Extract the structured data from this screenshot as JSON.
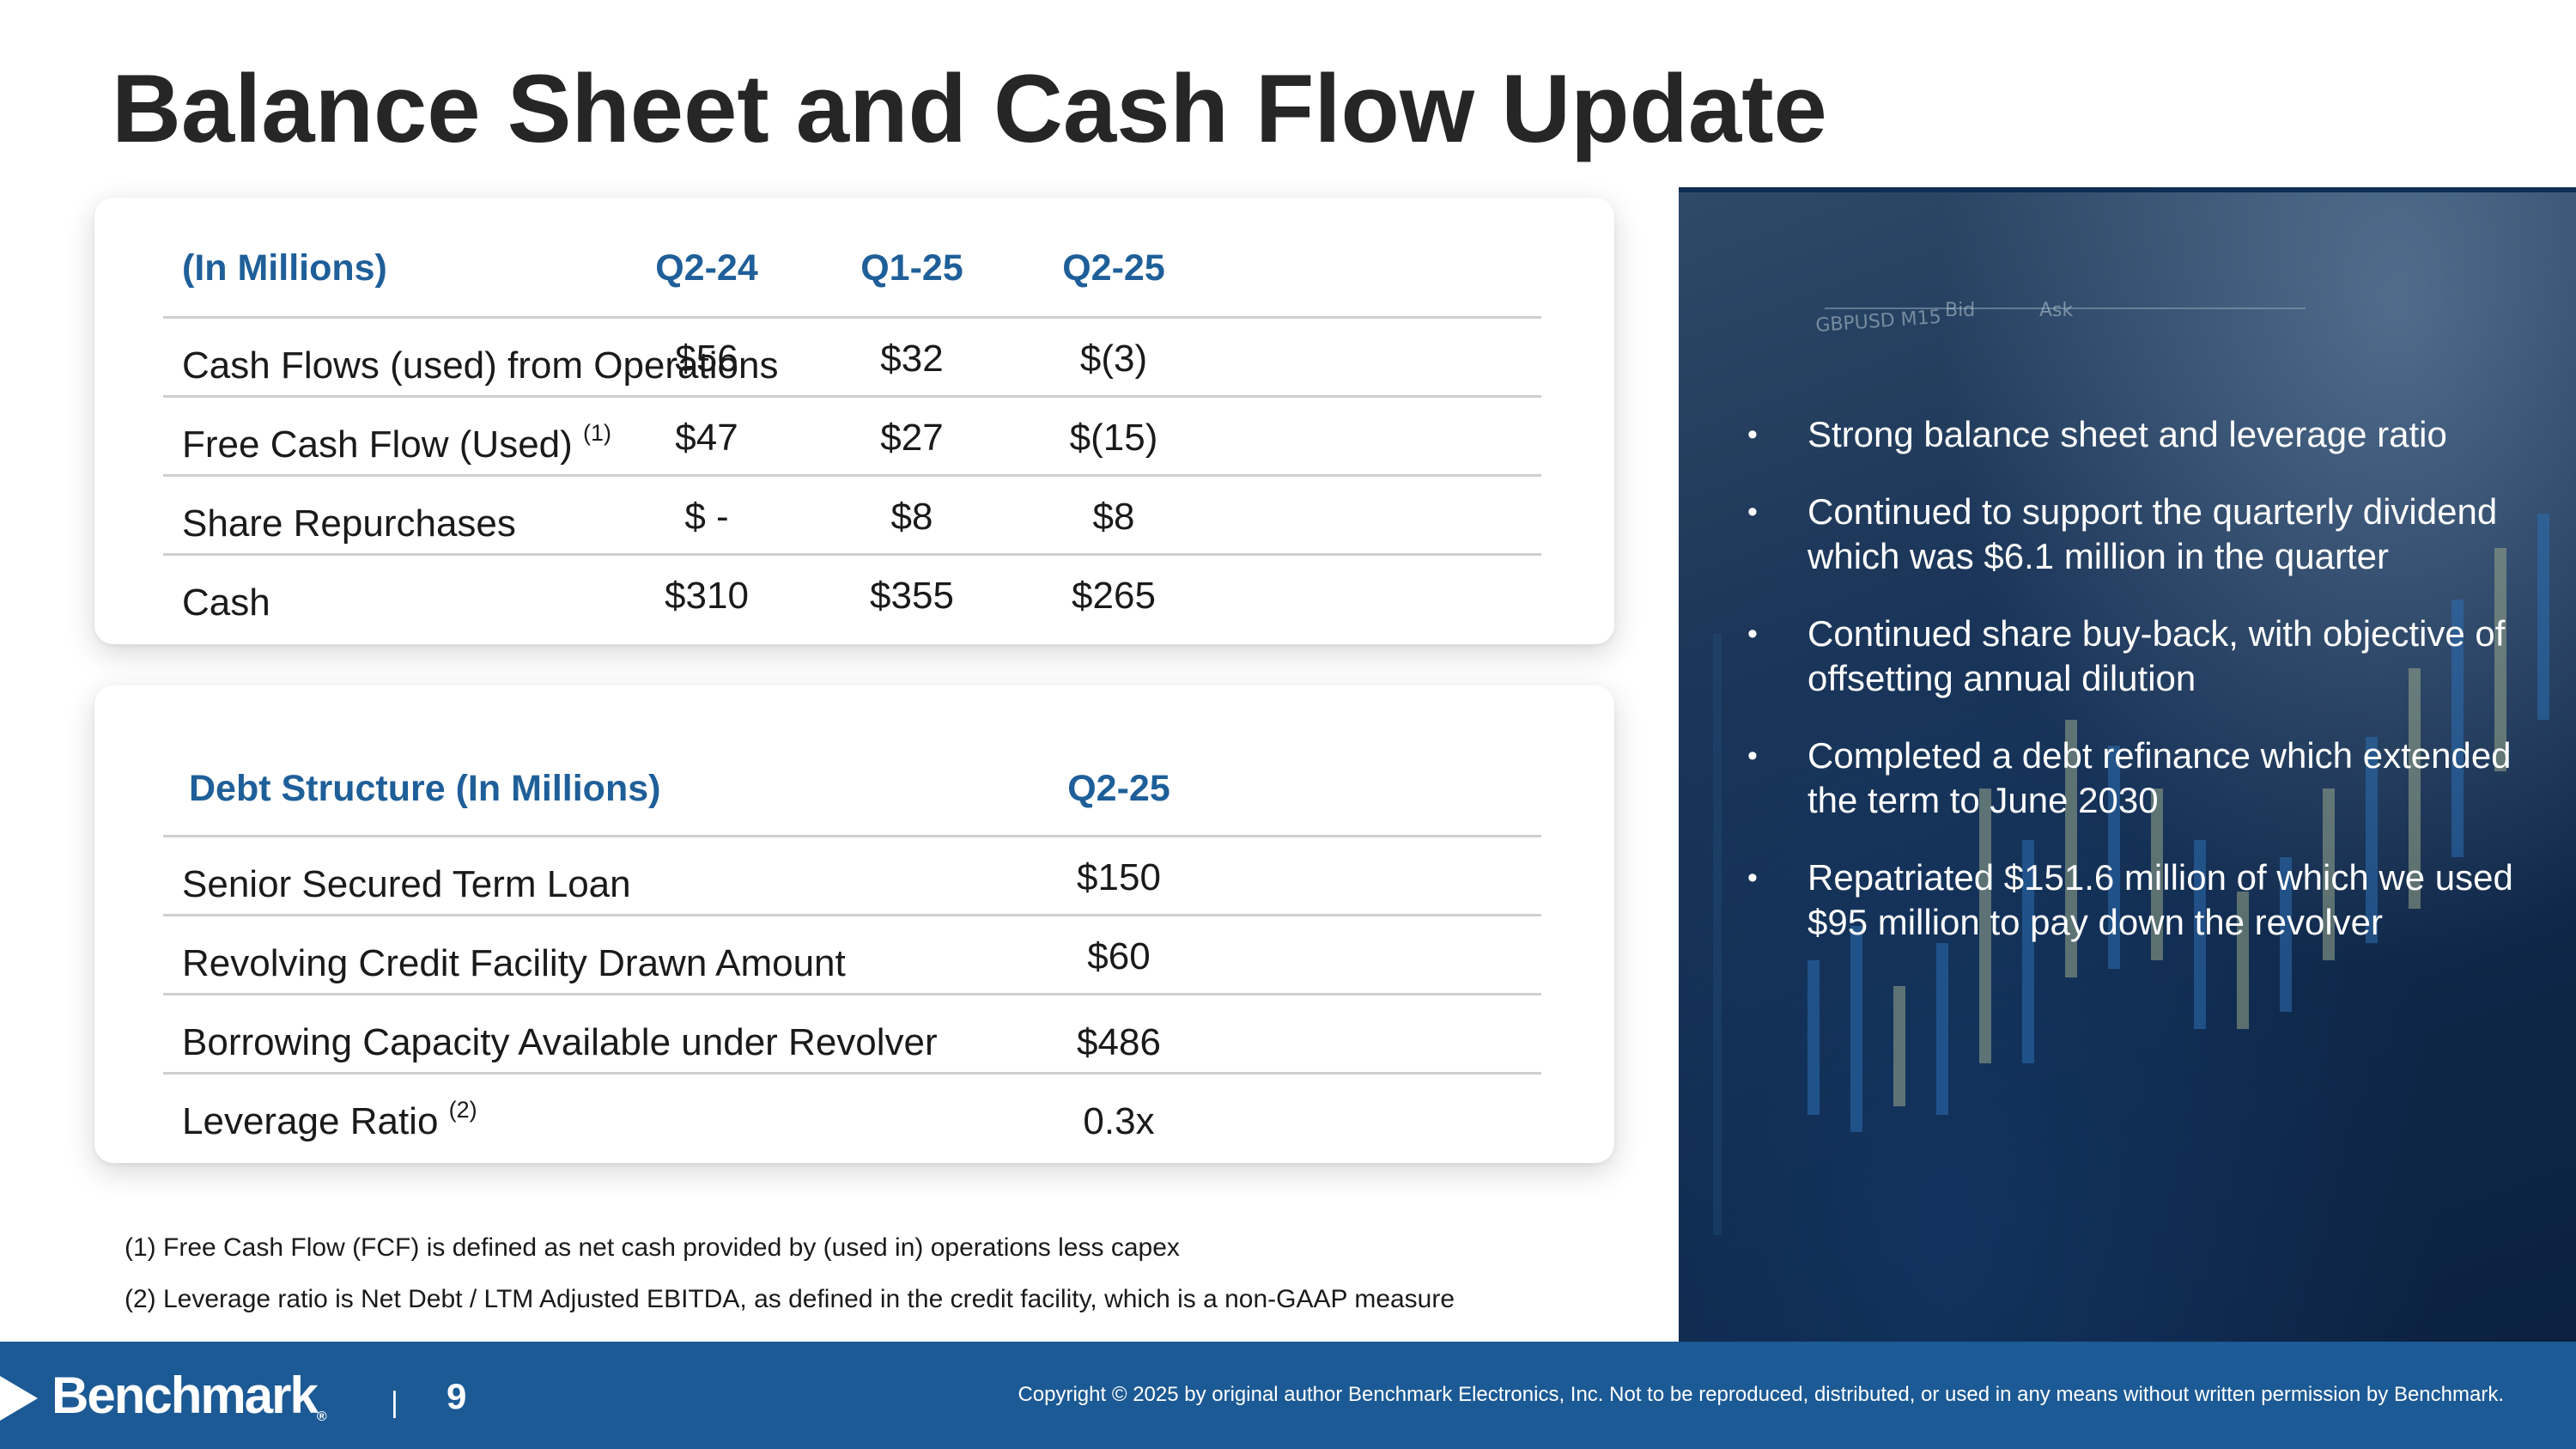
{
  "title": "Balance Sheet and Cash Flow Update",
  "cash_table": {
    "header": {
      "label": "(In Millions)",
      "cols": [
        "Q2-24",
        "Q1-25",
        "Q2-25"
      ]
    },
    "rows": [
      {
        "label": "Cash Flows (used) from Operations",
        "sup": "",
        "values": [
          "$56",
          "$32",
          "$(3)"
        ]
      },
      {
        "label": "Free Cash Flow (Used)",
        "sup": "(1)",
        "values": [
          "$47",
          "$27",
          "$(15)"
        ]
      },
      {
        "label": "Share Repurchases",
        "sup": "",
        "values": [
          "$ -",
          "$8",
          "$8"
        ]
      },
      {
        "label": "Cash",
        "sup": "",
        "values": [
          "$310",
          "$355",
          "$265"
        ]
      }
    ]
  },
  "debt_table": {
    "header": {
      "label": "Debt Structure (In Millions)",
      "col": "Q2-25"
    },
    "rows": [
      {
        "label": "Senior Secured Term Loan",
        "sup": "",
        "value": "$150"
      },
      {
        "label": "Revolving Credit Facility Drawn Amount",
        "sup": "",
        "value": "$60"
      },
      {
        "label": "Borrowing Capacity Available under Revolver",
        "sup": "",
        "value": "$486"
      },
      {
        "label": "Leverage Ratio",
        "sup": "(2)",
        "value": "0.3x"
      }
    ]
  },
  "footnotes": [
    "(1) Free Cash Flow (FCF) is defined as net cash provided by (used in) operations less capex",
    "(2) Leverage ratio is Net Debt / LTM Adjusted EBITDA, as defined in the credit facility, which is a non-GAAP measure"
  ],
  "bullets": [
    "Strong balance sheet and leverage ratio",
    "Continued to support the quarterly dividend which was $6.1 million in the quarter",
    "Continued share buy-back, with objective of offsetting annual dilution",
    "Completed a debt refinance which extended the term to June 2030",
    "Repatriated $151.6 million of which we used $95 million to pay down the revolver"
  ],
  "footer": {
    "logo": "Benchmark",
    "logo_reg": "®",
    "page_number": "9",
    "copyright": "Copyright © 2025 by original author Benchmark Electronics, Inc. Not to be reproduced, distributed, or used in any means without written permission by Benchmark."
  },
  "colors": {
    "accent": "#1f5f99",
    "footer_bg": "#1c5a95",
    "panel_bg": "#1b3456"
  }
}
